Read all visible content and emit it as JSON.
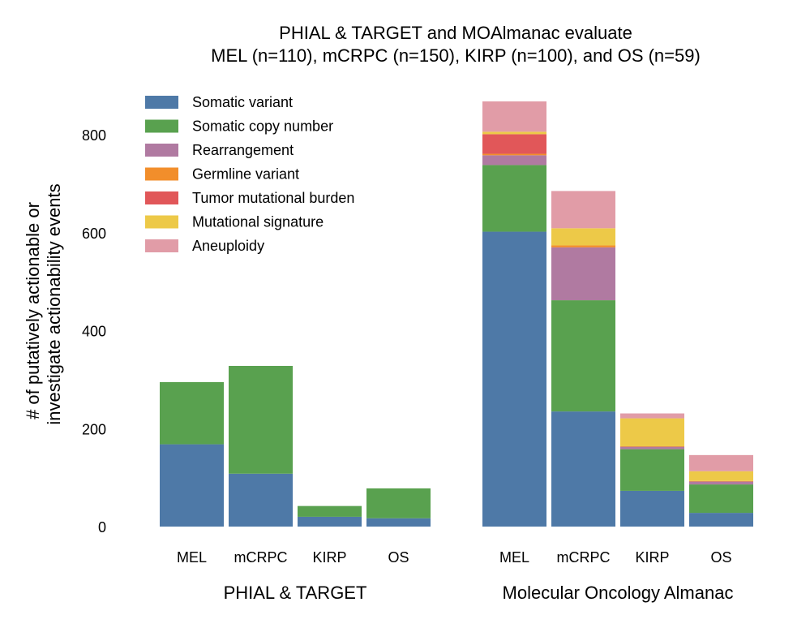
{
  "chart_data": {
    "type": "bar",
    "stacked": true,
    "title": [
      "PHIAL & TARGET and MOAlmanac evaluate",
      "MEL (n=110), mCRPC (n=150), KIRP (n=100), and OS (n=59)"
    ],
    "ylabel": [
      "# of putatively actionable or",
      "investigate actionability events"
    ],
    "ylim": [
      0,
      880
    ],
    "yticks": [
      0,
      200,
      400,
      600,
      800
    ],
    "grid": false,
    "legend_position": "top-left",
    "groups": [
      {
        "label": "PHIAL & TARGET",
        "categories": [
          "MEL",
          "mCRPC",
          "KIRP",
          "OS"
        ],
        "series": [
          {
            "name": "Somatic variant",
            "values": [
              168,
              108,
              20,
              17
            ]
          },
          {
            "name": "Somatic copy number",
            "values": [
              127,
              220,
              22,
              61
            ]
          },
          {
            "name": "Rearrangement",
            "values": [
              0,
              0,
              0,
              0
            ]
          },
          {
            "name": "Germline variant",
            "values": [
              0,
              0,
              0,
              0
            ]
          },
          {
            "name": "Tumor mutational burden",
            "values": [
              0,
              0,
              0,
              0
            ]
          },
          {
            "name": "Mutational signature",
            "values": [
              0,
              0,
              0,
              0
            ]
          },
          {
            "name": "Aneuploidy",
            "values": [
              0,
              0,
              0,
              0
            ]
          }
        ]
      },
      {
        "label": "Molecular Oncology Almanac",
        "categories": [
          "MEL",
          "mCRPC",
          "KIRP",
          "OS"
        ],
        "series": [
          {
            "name": "Somatic variant",
            "values": [
              602,
              235,
              73,
              28
            ]
          },
          {
            "name": "Somatic copy number",
            "values": [
              136,
              227,
              85,
              58
            ]
          },
          {
            "name": "Rearrangement",
            "values": [
              20,
              108,
              5,
              6
            ]
          },
          {
            "name": "Germline variant",
            "values": [
              3,
              4,
              1,
              1
            ]
          },
          {
            "name": "Tumor mutational burden",
            "values": [
              40,
              0,
              0,
              0
            ]
          },
          {
            "name": "Mutational signature",
            "values": [
              5,
              35,
              57,
              20
            ]
          },
          {
            "name": "Aneuploidy",
            "values": [
              62,
              76,
              10,
              33
            ]
          }
        ]
      }
    ],
    "colors": {
      "Somatic variant": "#4e79a7",
      "Somatic copy number": "#59a14f",
      "Rearrangement": "#b07aa1",
      "Germline variant": "#f28e2b",
      "Tumor mutational burden": "#e15759",
      "Mutational signature": "#edc948",
      "Aneuploidy": "#e19ca7"
    },
    "legend": [
      "Somatic variant",
      "Somatic copy number",
      "Rearrangement",
      "Germline variant",
      "Tumor mutational burden",
      "Mutational signature",
      "Aneuploidy"
    ]
  }
}
